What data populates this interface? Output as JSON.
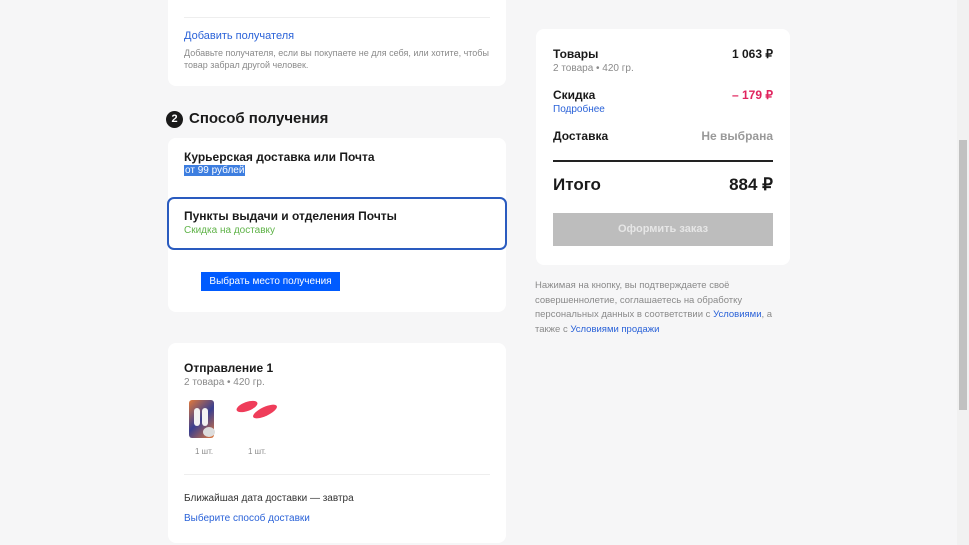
{
  "recipient": {
    "add_link": "Добавить получателя",
    "hint": "Добавьте получателя, если вы покупаете не для себя, или хотите, чтобы товар забрал другой человек."
  },
  "delivery": {
    "step_number": "2",
    "title": "Способ получения",
    "options": [
      {
        "title": "Курьерская доставка или Почта",
        "subtitle": "от 99 рублей",
        "selected": false
      },
      {
        "title": "Пункты выдачи и отделения Почты",
        "subtitle": "Скидка на доставку",
        "selected": true
      }
    ],
    "choose_button": "Выбрать место получения"
  },
  "shipment": {
    "title": "Отправление 1",
    "meta": "2 товара • 420 гр.",
    "items": [
      {
        "qty": "1 шт."
      },
      {
        "qty": "1 шт."
      }
    ],
    "nearest_date": "Ближайшая дата доставки — завтра",
    "choose_link": "Выберите способ доставки"
  },
  "summary": {
    "goods_label": "Товары",
    "goods_meta": "2 товара • 420 гр.",
    "goods_value": "1 063 ₽",
    "discount_label": "Скидка",
    "discount_link": "Подробнее",
    "discount_value": "– 179 ₽",
    "delivery_label": "Доставка",
    "delivery_value": "Не выбрана",
    "total_label": "Итого",
    "total_value": "884 ₽",
    "checkout_button": "Оформить заказ",
    "legal_1": "Нажимая на кнопку, вы подтверждаете своё совершеннолетие, соглашаетесь на обработку персональных данных в соответствии с ",
    "legal_link_1": "Условиями",
    "legal_2": ", а также с ",
    "legal_link_2": "Условиями продажи"
  },
  "colors": {
    "accent": "#005bff",
    "discount": "#e0245e",
    "green": "#5fb348",
    "disabled": "#bdbdbd"
  }
}
